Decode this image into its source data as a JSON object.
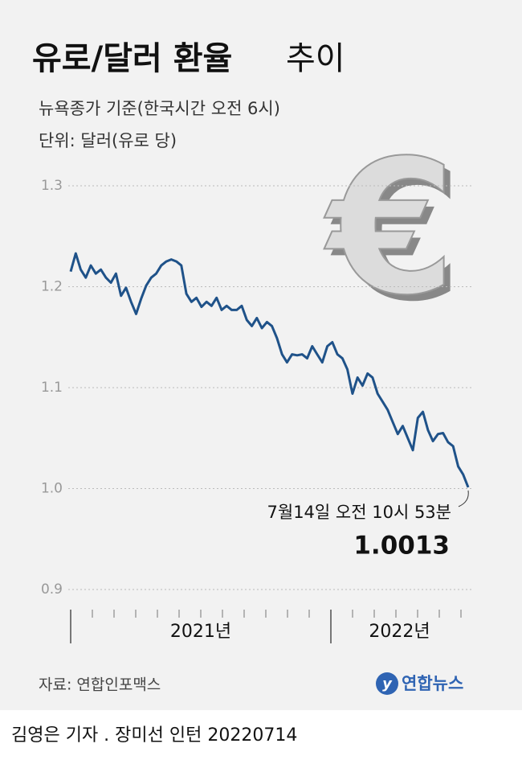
{
  "chart_data": {
    "type": "line",
    "title": "유로/달러 환율",
    "title_suffix": "추이",
    "subtitle": [
      "뉴욕종가 기준(한국시간 오전 6시)",
      "단위: 달러(유로 당)"
    ],
    "values": [
      1.215,
      1.233,
      1.217,
      1.209,
      1.221,
      1.213,
      1.217,
      1.209,
      1.204,
      1.213,
      1.191,
      1.199,
      1.185,
      1.173,
      1.188,
      1.201,
      1.209,
      1.213,
      1.221,
      1.225,
      1.227,
      1.225,
      1.221,
      1.193,
      1.185,
      1.189,
      1.18,
      1.185,
      1.181,
      1.189,
      1.177,
      1.181,
      1.177,
      1.177,
      1.181,
      1.167,
      1.161,
      1.169,
      1.159,
      1.165,
      1.161,
      1.149,
      1.133,
      1.125,
      1.133,
      1.132,
      1.133,
      1.129,
      1.141,
      1.133,
      1.125,
      1.141,
      1.145,
      1.133,
      1.129,
      1.118,
      1.094,
      1.11,
      1.102,
      1.114,
      1.11,
      1.094,
      1.086,
      1.078,
      1.066,
      1.054,
      1.062,
      1.05,
      1.038,
      1.07,
      1.076,
      1.058,
      1.047,
      1.054,
      1.055,
      1.046,
      1.042,
      1.022,
      1.014,
      1.0013
    ],
    "color": "#1f5289",
    "ylim": [
      0.9,
      1.3
    ],
    "yticks": [
      0.9,
      {
        "value": 1,
        "label": "1.0"
      },
      1.1,
      1.2,
      1.3
    ],
    "grid": true,
    "x_labels": [
      "2021년",
      "2022년"
    ],
    "annotation": "7월14일 오전 10시 53분",
    "source": "자료: 연합인포맥스",
    "logo": "연합뉴스",
    "credit": "김영은 기자 . 장미선 인턴 20220714"
  }
}
